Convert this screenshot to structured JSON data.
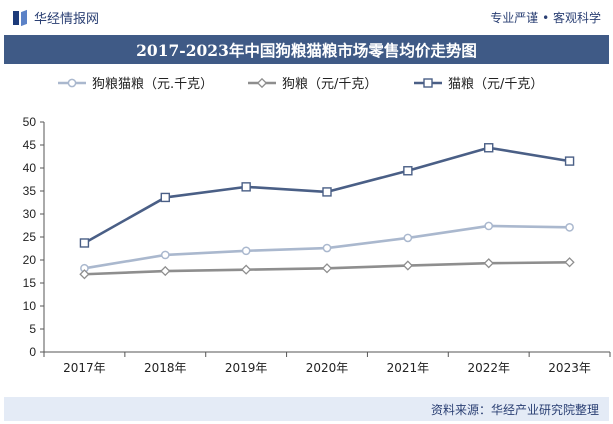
{
  "header": {
    "brand": "华经情报网",
    "slogan": "专业严谨 • 客观科学"
  },
  "colors": {
    "title_bg": "#3f5a86",
    "footer_bg": "#e4ebf6",
    "brand_text": "#2a3f73"
  },
  "chart_data": {
    "type": "line",
    "title": "2017-2023年中国狗粮猫粮市场零售均价走势图",
    "categories": [
      "2017年",
      "2018年",
      "2019年",
      "2020年",
      "2021年",
      "2022年",
      "2023年"
    ],
    "ylim": [
      0,
      50
    ],
    "yticks": [
      0,
      5,
      10,
      15,
      20,
      25,
      30,
      35,
      40,
      45,
      50
    ],
    "grid": false,
    "legend_position": "top",
    "series": [
      {
        "name": "狗粮猫粮（元.千克）",
        "color": "#aab8ce",
        "marker": "circle",
        "values": [
          18.2,
          21.1,
          22.0,
          22.6,
          24.8,
          27.4,
          27.1
        ]
      },
      {
        "name": "狗粮（元/千克）",
        "color": "#8e8e8e",
        "marker": "diamond",
        "values": [
          16.9,
          17.6,
          17.9,
          18.2,
          18.8,
          19.3,
          19.5
        ]
      },
      {
        "name": "猫粮（元/千克）",
        "color": "#4a5f86",
        "marker": "square",
        "values": [
          23.7,
          33.6,
          35.9,
          34.8,
          39.4,
          44.4,
          41.5
        ]
      }
    ]
  },
  "footer": {
    "source": "资料来源：华经产业研究院整理"
  }
}
